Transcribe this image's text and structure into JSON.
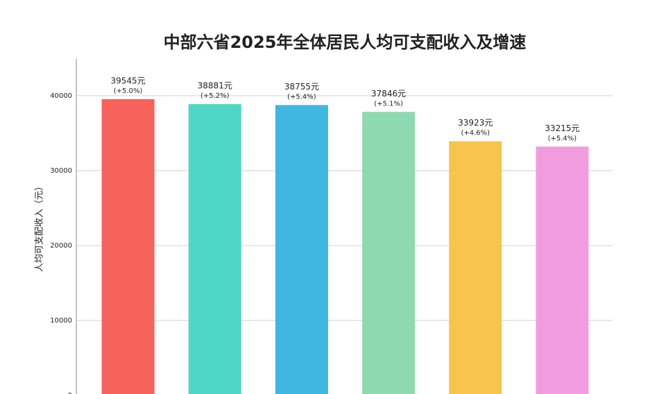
{
  "chart_data": {
    "type": "bar",
    "title": "中部六省2025年全体居民人均可支配收入及增速",
    "y_label": "人均可支配收入（元）",
    "categories": [
      null,
      null,
      null,
      null,
      null,
      null
    ],
    "values": [
      39545,
      38881,
      38755,
      37846,
      33923,
      33215
    ],
    "value_labels": [
      "39545元",
      "38881元",
      "38755元",
      "37846元",
      "33923元",
      "33215元"
    ],
    "growth_labels": [
      "(+5.0%)",
      "(+5.2%)",
      "(+5.4%)",
      "(+5.1%)",
      "(+4.6%)",
      "(+5.4%)"
    ],
    "colors": [
      "#f7625a",
      "#4fd6c6",
      "#3fb7e0",
      "#8fd9b0",
      "#f7c44c",
      "#f29ce0"
    ],
    "ylim": [
      0,
      45000
    ],
    "yticks": [
      0,
      10000,
      20000,
      30000,
      40000
    ],
    "grid": true
  }
}
